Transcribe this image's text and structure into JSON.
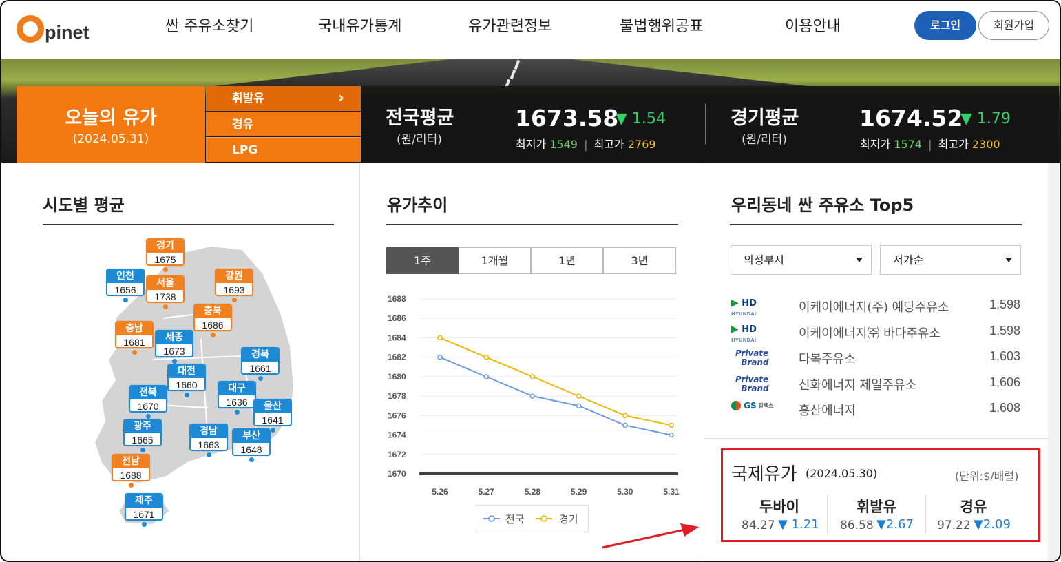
{
  "header": {
    "logo_text": "pinet",
    "nav": [
      "싼 주유소찾기",
      "국내유가통계",
      "유가관련정보",
      "불법행위공표",
      "이용안내"
    ],
    "login_label": "로그인",
    "join_label": "회원가입"
  },
  "banner": {
    "today_title": "오늘의 유가",
    "today_date": "(2024.05.31)",
    "fuel_tabs": [
      "휘발유",
      "경유",
      "LPG"
    ],
    "national": {
      "title": "전국평균",
      "unit": "(원/리터)",
      "value": "1673.58",
      "change": "1.54",
      "min_label": "최저가",
      "min": "1549",
      "max_label": "최고가",
      "max": "2769"
    },
    "gyeonggi": {
      "title": "경기평균",
      "unit": "(원/리터)",
      "value": "1674.52",
      "change": "1.79",
      "min_label": "최저가",
      "min": "1574",
      "max_label": "최고가",
      "max": "2300"
    }
  },
  "map": {
    "title": "시도별 평균",
    "regions": [
      {
        "name": "경기",
        "value": "1675",
        "color": "orange"
      },
      {
        "name": "인천",
        "value": "1656",
        "color": "blue"
      },
      {
        "name": "서울",
        "value": "1738",
        "color": "orange"
      },
      {
        "name": "강원",
        "value": "1693",
        "color": "orange"
      },
      {
        "name": "충북",
        "value": "1686",
        "color": "orange"
      },
      {
        "name": "충남",
        "value": "1681",
        "color": "orange"
      },
      {
        "name": "세종",
        "value": "1673",
        "color": "blue"
      },
      {
        "name": "경북",
        "value": "1661",
        "color": "blue"
      },
      {
        "name": "대전",
        "value": "1660",
        "color": "blue"
      },
      {
        "name": "전북",
        "value": "1670",
        "color": "blue"
      },
      {
        "name": "대구",
        "value": "1636",
        "color": "blue"
      },
      {
        "name": "울산",
        "value": "1641",
        "color": "blue"
      },
      {
        "name": "광주",
        "value": "1665",
        "color": "blue"
      },
      {
        "name": "경남",
        "value": "1663",
        "color": "blue"
      },
      {
        "name": "부산",
        "value": "1648",
        "color": "blue"
      },
      {
        "name": "전남",
        "value": "1688",
        "color": "orange"
      },
      {
        "name": "제주",
        "value": "1671",
        "color": "blue"
      }
    ]
  },
  "trend": {
    "title": "유가추이",
    "tabs": [
      "1주",
      "1개월",
      "1년",
      "3년"
    ],
    "active_tab": "1주"
  },
  "chart_data": {
    "type": "line",
    "x": [
      "5.26",
      "5.27",
      "5.28",
      "5.29",
      "5.30",
      "5.31"
    ],
    "series": [
      {
        "name": "전국",
        "values": [
          1682,
          1680,
          1678,
          1677,
          1675,
          1674
        ],
        "color": "#6f9ae0"
      },
      {
        "name": "경기",
        "values": [
          1684,
          1682,
          1680,
          1678,
          1676,
          1675
        ],
        "color": "#f0b800"
      }
    ],
    "yticks": [
      "1688",
      "1686",
      "1684",
      "1682",
      "1680",
      "1678",
      "1676",
      "1674",
      "1672",
      "1670"
    ],
    "ylim": [
      1670,
      1688
    ],
    "grid": true,
    "legend": "bottom"
  },
  "top5": {
    "title": "우리동네 싼 주유소 Top5",
    "city_select": "의정부시",
    "sort_select": "저가순",
    "stations": [
      {
        "brand": "HD HYUNDAI OILBANK",
        "brand_icon": "hd-hyundai-oilbank-logo",
        "name": "이케이에너지(주) 예당주유소",
        "price": "1,598"
      },
      {
        "brand": "HD HYUNDAI OILBANK",
        "brand_icon": "hd-hyundai-oilbank-logo",
        "name": "이케이에너지㈜ 바다주유소",
        "price": "1,598"
      },
      {
        "brand": "Private Brand",
        "brand_icon": "private-brand-logo",
        "name": "다복주유소",
        "price": "1,603"
      },
      {
        "brand": "Private Brand",
        "brand_icon": "private-brand-logo",
        "name": "신화에너지 제일주유소",
        "price": "1,606"
      },
      {
        "brand": "GS 칼텍스",
        "brand_icon": "gs-caltex-logo",
        "name": "흥산에너지",
        "price": "1,608"
      }
    ]
  },
  "international": {
    "title": "국제유가",
    "date": "(2024.05.30)",
    "unit": "(단위:$/배럴)",
    "items": [
      {
        "name": "두바이",
        "value": "84.27",
        "change": "▼ 1.21"
      },
      {
        "name": "휘발유",
        "value": "86.58",
        "change": "▼2.67"
      },
      {
        "name": "경유",
        "value": "97.22",
        "change": "▼2.09"
      }
    ]
  },
  "colors": {
    "brand_orange": "#f2780f",
    "login_blue": "#1e5fb8",
    "up_green": "#35d16a",
    "down_blue": "#1e7fd0",
    "highlight_red": "#e01e26"
  }
}
